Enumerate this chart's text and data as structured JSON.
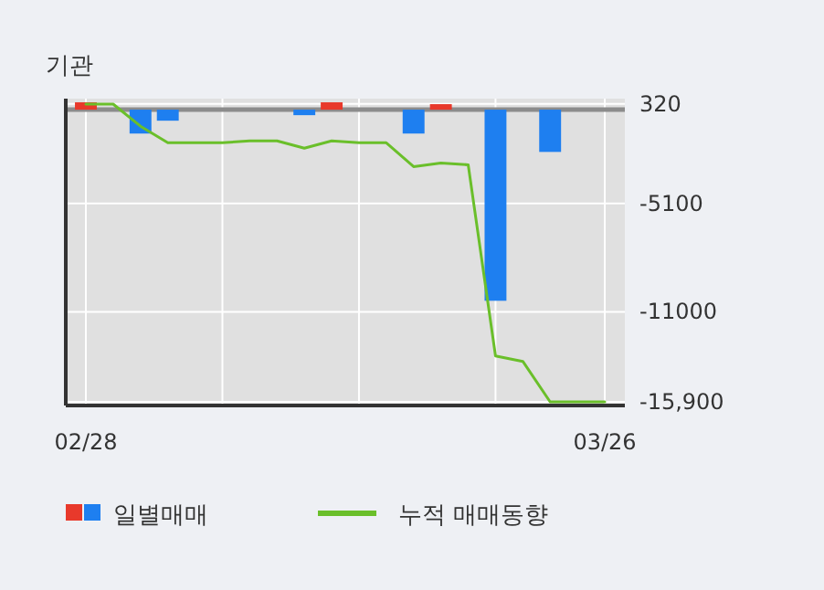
{
  "chart_data": {
    "type": "bar",
    "title": "기관",
    "categories": [
      "02/28",
      null,
      null,
      null,
      null,
      null,
      null,
      null,
      null,
      null,
      null,
      null,
      null,
      null,
      null,
      null,
      null,
      null,
      null,
      "03/26"
    ],
    "series": [
      {
        "name": "일별매매",
        "colors": [
          "#e8392b",
          null,
          "#1e7ff0",
          "#1e7ff0",
          null,
          null,
          null,
          null,
          "#1e7ff0",
          "#e8392b",
          null,
          null,
          "#1e7ff0",
          "#e8392b",
          null,
          "#1e7ff0",
          null,
          "#1e7ff0",
          null,
          null
        ],
        "values": [
          400,
          null,
          -1300,
          -600,
          null,
          null,
          null,
          null,
          -300,
          400,
          null,
          null,
          -1300,
          300,
          null,
          -10400,
          null,
          -2300,
          null,
          null
        ]
      },
      {
        "name": "누적 매매동향",
        "type": "line",
        "color": "#6abf2a",
        "values": [
          300,
          300,
          -900,
          -1800,
          -1800,
          -1800,
          -1700,
          -1700,
          -2100,
          -1700,
          -1800,
          -1800,
          -3100,
          -2900,
          -3000,
          -13400,
          -13700,
          -15900,
          -15900,
          -15900
        ]
      }
    ],
    "ylim": [
      -16100,
      600
    ],
    "yticks": [
      320,
      -5100,
      -11000,
      {
        "value": -15900,
        "label": "-15,900"
      }
    ],
    "ref_lines": [
      {
        "axis": "y",
        "value": 0,
        "color": "#8c8c8c"
      }
    ],
    "grid": true,
    "legend": "bottom"
  }
}
